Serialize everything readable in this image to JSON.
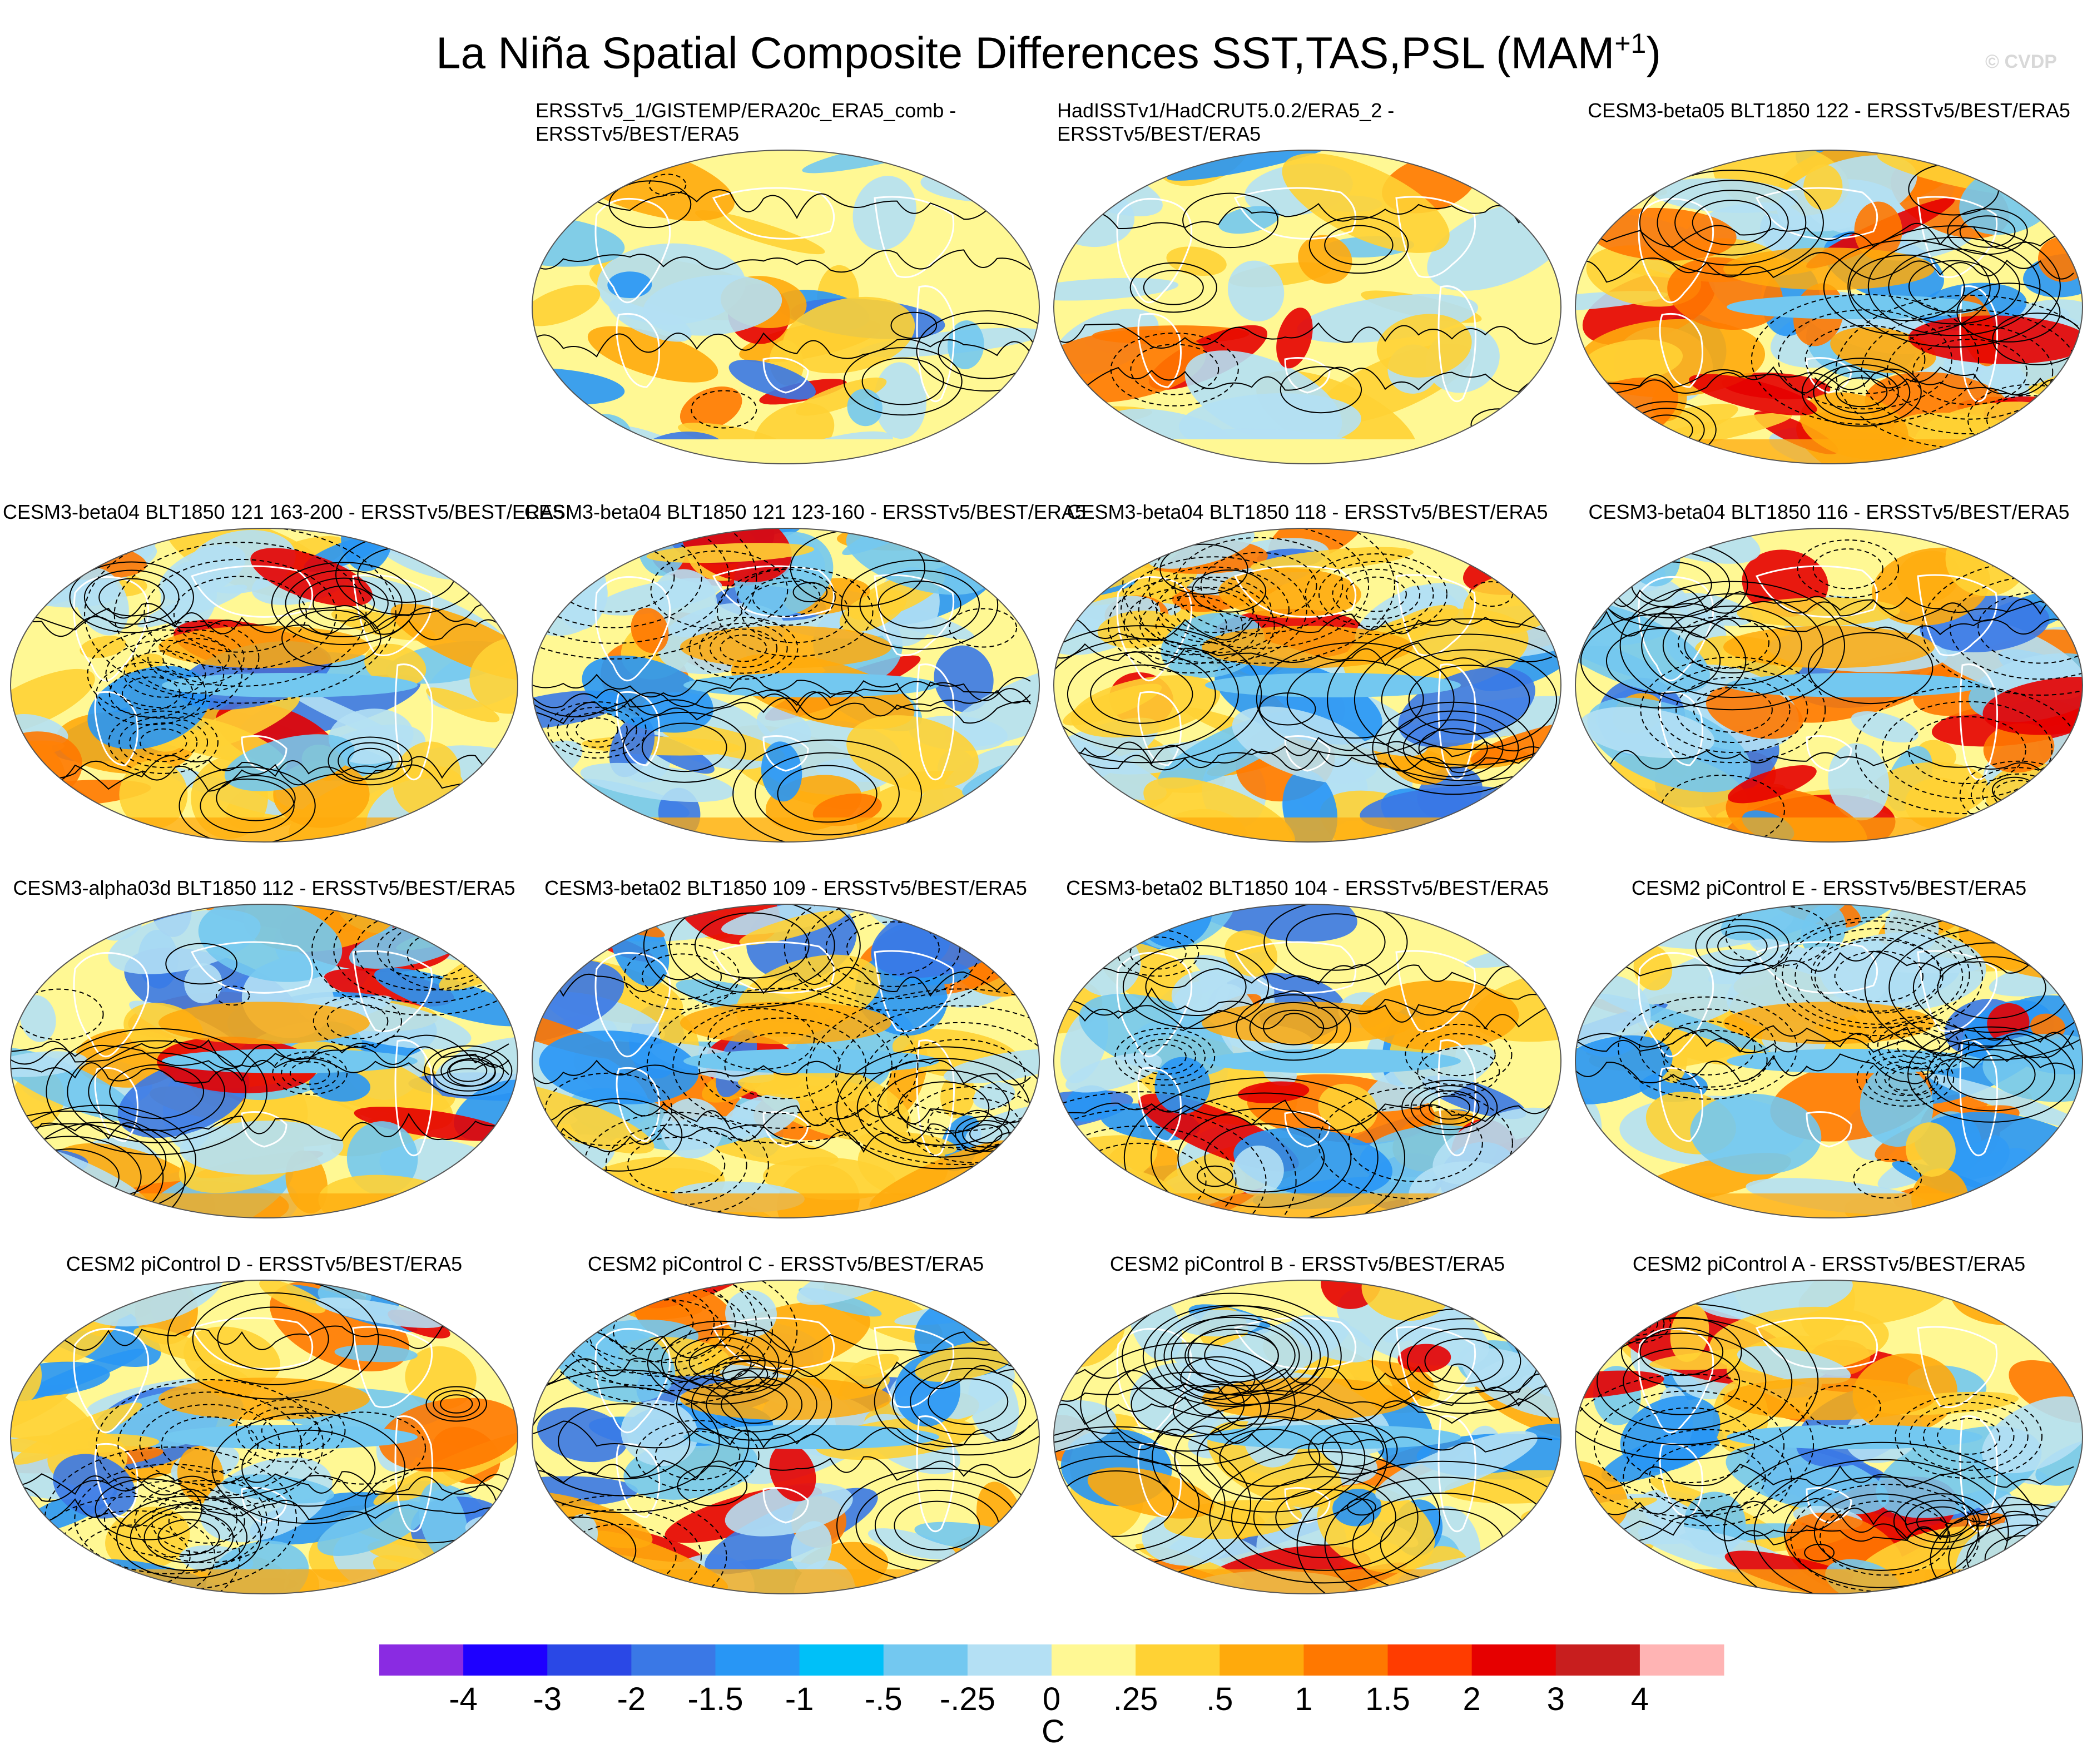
{
  "title": {
    "main": "La Niña Spatial Composite Differences SST,TAS,PSL (MAM",
    "superscript": "+1",
    "close": ")"
  },
  "watermark": "© CVDP",
  "panels": [
    {
      "title": "ERSSTv5_1/GISTEMP/ERA20c_ERA5_comb -\nERSSTv5/BEST/ERA5",
      "row": 0,
      "col": 1,
      "style": "obs"
    },
    {
      "title": "HadISSTv1/HadCRUT5.0.2/ERA5_2 -\nERSSTv5/BEST/ERA5",
      "row": 0,
      "col": 2,
      "style": "obs"
    },
    {
      "title": "CESM3-beta05 BLT1850 122 - ERSSTv5/BEST/ERA5",
      "row": 0,
      "col": 3,
      "style": "model"
    },
    {
      "title": "CESM3-beta04 BLT1850 121 163-200 - ERSSTv5/BEST/ERA5",
      "row": 1,
      "col": 0,
      "style": "model"
    },
    {
      "title": "CESM3-beta04 BLT1850 121 123-160 - ERSSTv5/BEST/ERA5",
      "row": 1,
      "col": 1,
      "style": "model"
    },
    {
      "title": "CESM3-beta04 BLT1850 118 - ERSSTv5/BEST/ERA5",
      "row": 1,
      "col": 2,
      "style": "model"
    },
    {
      "title": "CESM3-beta04 BLT1850 116 - ERSSTv5/BEST/ERA5",
      "row": 1,
      "col": 3,
      "style": "model"
    },
    {
      "title": "CESM3-alpha03d BLT1850 112 - ERSSTv5/BEST/ERA5",
      "row": 2,
      "col": 0,
      "style": "model"
    },
    {
      "title": "CESM3-beta02 BLT1850 109 - ERSSTv5/BEST/ERA5",
      "row": 2,
      "col": 1,
      "style": "model"
    },
    {
      "title": "CESM3-beta02 BLT1850 104 - ERSSTv5/BEST/ERA5",
      "row": 2,
      "col": 2,
      "style": "model"
    },
    {
      "title": "CESM2 piControl E - ERSSTv5/BEST/ERA5",
      "row": 2,
      "col": 3,
      "style": "model"
    },
    {
      "title": "CESM2 piControl D - ERSSTv5/BEST/ERA5",
      "row": 3,
      "col": 0,
      "style": "model"
    },
    {
      "title": "CESM2 piControl C - ERSSTv5/BEST/ERA5",
      "row": 3,
      "col": 1,
      "style": "model"
    },
    {
      "title": "CESM2 piControl B - ERSSTv5/BEST/ERA5",
      "row": 3,
      "col": 2,
      "style": "model"
    },
    {
      "title": "CESM2 piControl A - ERSSTv5/BEST/ERA5",
      "row": 3,
      "col": 3,
      "style": "model"
    }
  ],
  "colorbar": {
    "unit": "C",
    "labels": [
      "-4",
      "-3",
      "-2",
      "-1.5",
      "-1",
      "-.5",
      "-.25",
      "0",
      ".25",
      ".5",
      "1",
      "1.5",
      "2",
      "3",
      "4"
    ],
    "colors": [
      "#8a2be2",
      "#1e00ff",
      "#2a48e6",
      "#3a78e6",
      "#2896f5",
      "#00c0f8",
      "#73c8f0",
      "#b4e0f4",
      "#fff894",
      "#ffd234",
      "#ffaa0c",
      "#ff7800",
      "#ff3c00",
      "#e60000",
      "#c81e1e",
      "#ffb4b4"
    ]
  }
}
